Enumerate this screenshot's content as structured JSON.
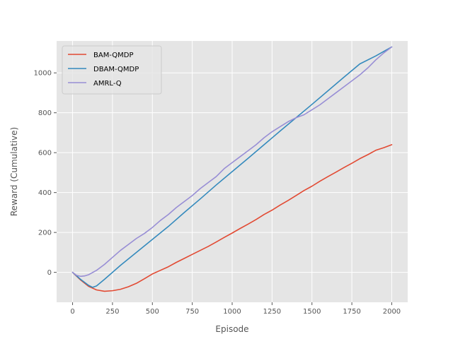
{
  "chart_data": {
    "type": "line",
    "title": "",
    "xlabel": "Episode",
    "ylabel": "Reward (Cumulative)",
    "xlim": [
      -100,
      2100
    ],
    "ylim": [
      -150,
      1160
    ],
    "xticks": [
      0,
      250,
      500,
      750,
      1000,
      1250,
      1500,
      1750,
      2000
    ],
    "yticks": [
      0,
      200,
      400,
      600,
      800,
      1000
    ],
    "grid": true,
    "legend_position": "top-left",
    "series": [
      {
        "name": "BAM-QMDP",
        "color": "#E24A33",
        "x": [
          0,
          50,
          100,
          150,
          200,
          250,
          300,
          350,
          400,
          450,
          500,
          550,
          600,
          650,
          700,
          750,
          800,
          850,
          900,
          950,
          1000,
          1050,
          1100,
          1150,
          1200,
          1250,
          1300,
          1350,
          1400,
          1450,
          1500,
          1550,
          1600,
          1650,
          1700,
          1750,
          1800,
          1850,
          1900,
          1950,
          2000
        ],
        "y": [
          0,
          -38,
          -70,
          -88,
          -95,
          -92,
          -85,
          -72,
          -55,
          -32,
          -8,
          10,
          28,
          50,
          70,
          90,
          110,
          130,
          152,
          175,
          197,
          220,
          242,
          265,
          290,
          312,
          337,
          360,
          385,
          410,
          432,
          457,
          480,
          502,
          525,
          547,
          570,
          590,
          612,
          625,
          640
        ]
      },
      {
        "name": "DBAM-QMDP",
        "color": "#348ABD",
        "x": [
          0,
          50,
          100,
          125,
          150,
          200,
          250,
          300,
          400,
          500,
          600,
          700,
          800,
          900,
          1000,
          1100,
          1200,
          1300,
          1400,
          1500,
          1600,
          1700,
          1800,
          1900,
          2000
        ],
        "y": [
          0,
          -35,
          -65,
          -75,
          -68,
          -35,
          0,
          35,
          100,
          165,
          230,
          300,
          368,
          438,
          505,
          572,
          640,
          708,
          775,
          842,
          910,
          978,
          1045,
          1085,
          1130
        ]
      },
      {
        "name": "AMRL-Q",
        "color": "#988ED5",
        "x": [
          0,
          25,
          50,
          75,
          100,
          150,
          200,
          250,
          300,
          350,
          400,
          450,
          500,
          550,
          600,
          650,
          700,
          750,
          800,
          850,
          900,
          950,
          1000,
          1050,
          1100,
          1150,
          1200,
          1250,
          1300,
          1350,
          1400,
          1450,
          1500,
          1550,
          1600,
          1650,
          1700,
          1750,
          1800,
          1850,
          1900,
          1950,
          2000
        ],
        "y": [
          0,
          -15,
          -20,
          -18,
          -12,
          10,
          40,
          75,
          110,
          140,
          170,
          195,
          225,
          260,
          290,
          325,
          355,
          385,
          420,
          450,
          480,
          520,
          550,
          580,
          610,
          640,
          675,
          705,
          730,
          755,
          775,
          790,
          815,
          840,
          870,
          900,
          930,
          960,
          990,
          1025,
          1065,
          1100,
          1130
        ]
      }
    ]
  }
}
